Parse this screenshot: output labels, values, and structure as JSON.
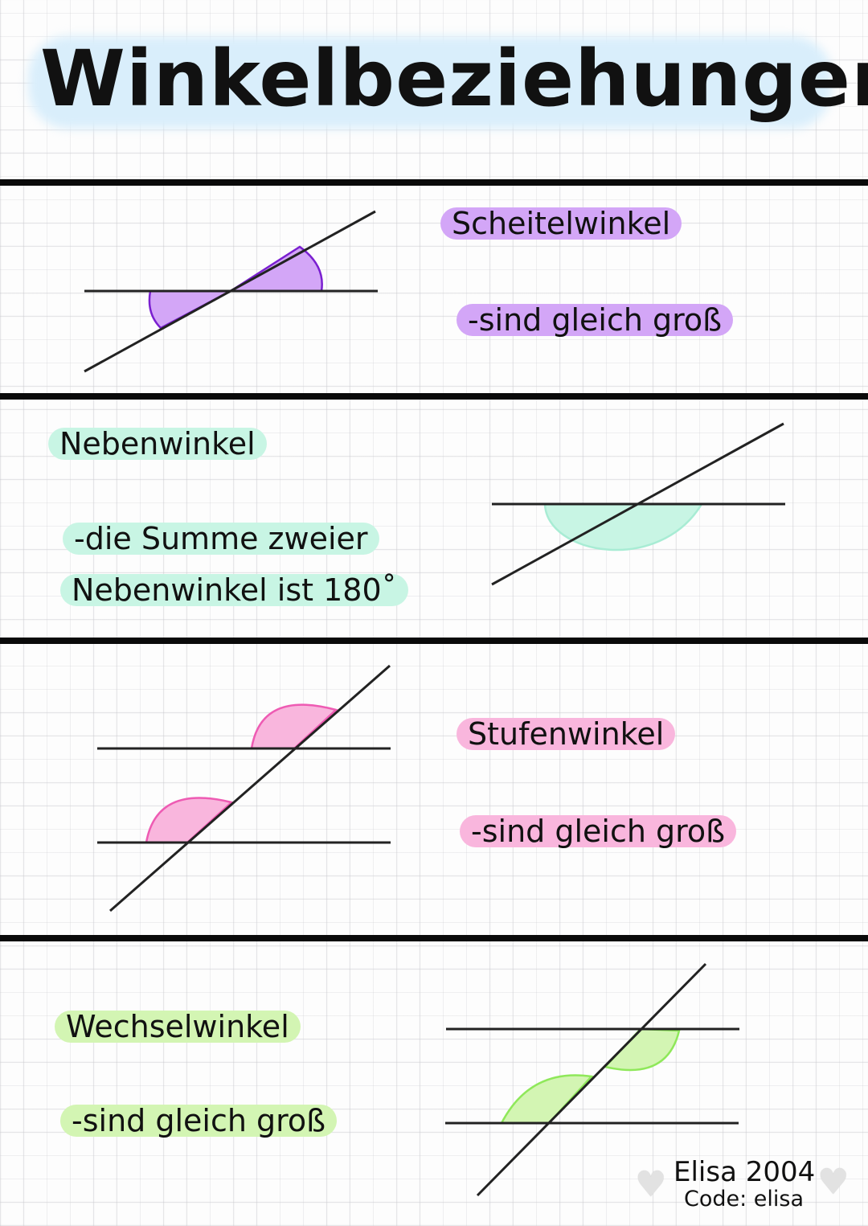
{
  "title": "Winkelbeziehungen",
  "colors": {
    "title_glow": "#d9eefb",
    "scheitel": "#d3a6f7",
    "scheitel_stroke": "#7a1fd0",
    "neben": "#c8f5e4",
    "neben_stroke": "#a8ecd4",
    "stufen": "#f9b6dd",
    "stufen_stroke": "#ee5bb3",
    "wechsel": "#d3f5b3",
    "wechsel_stroke": "#8fe85a"
  },
  "sections": [
    {
      "name": "Scheitelwinkel",
      "lines": [
        "-sind gleich groß"
      ]
    },
    {
      "name": "Nebenwinkel",
      "lines": [
        "-die Summe zweier",
        "Nebenwinkel ist 180˚"
      ]
    },
    {
      "name": "Stufenwinkel",
      "lines": [
        "-sind gleich groß"
      ]
    },
    {
      "name": "Wechselwinkel",
      "lines": [
        "-sind gleich groß"
      ]
    }
  ],
  "signature": {
    "name": "Elisa 2004",
    "code": "Code: elisa",
    "icon": "white-heart-icon"
  }
}
